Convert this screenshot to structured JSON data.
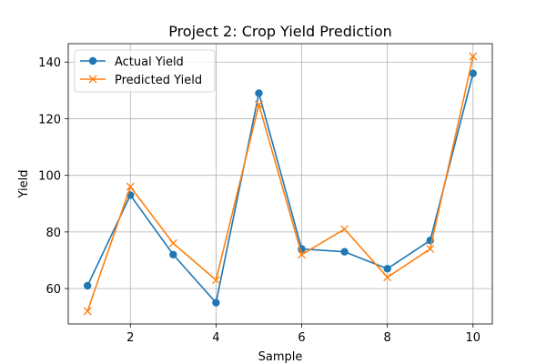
{
  "chart_data": {
    "type": "line",
    "title": "Project 2: Crop Yield Prediction",
    "xlabel": "Sample",
    "ylabel": "Yield",
    "x": [
      1,
      2,
      3,
      4,
      5,
      6,
      7,
      8,
      9,
      10
    ],
    "xlim": [
      0.55,
      10.45
    ],
    "ylim": [
      47.5,
      146.5
    ],
    "xticks": [
      2,
      4,
      6,
      8,
      10
    ],
    "yticks": [
      60,
      80,
      100,
      120,
      140
    ],
    "grid": true,
    "legend_position": "top-left",
    "series": [
      {
        "name": "Actual Yield",
        "color": "#1f77b4",
        "marker": "circle",
        "values": [
          61,
          93,
          72,
          55,
          129,
          74,
          73,
          67,
          77,
          136
        ]
      },
      {
        "name": "Predicted Yield",
        "color": "#ff7f0e",
        "marker": "x",
        "values": [
          52,
          96,
          76,
          63,
          125,
          72,
          81,
          64,
          74,
          142
        ]
      }
    ]
  }
}
